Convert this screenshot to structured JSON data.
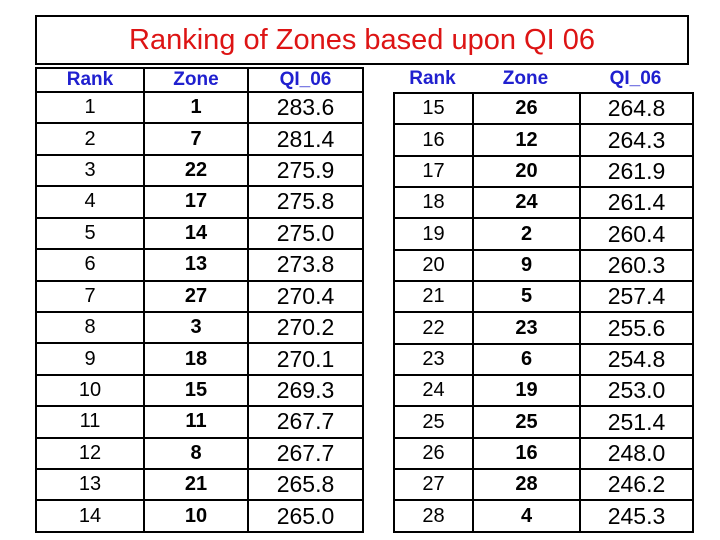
{
  "slide": {
    "title": "Ranking of Zones based upon QI 06"
  },
  "colors": {
    "title_red": "#dd1414",
    "header_blue": "#2020cf",
    "border_black": "#000000",
    "background": "#ffffff",
    "body_text": "#000000"
  },
  "columns": [
    "Rank",
    "Zone",
    "QI_06"
  ],
  "tables": {
    "left": {
      "rows": [
        [
          "1",
          "1",
          "283.6"
        ],
        [
          "2",
          "7",
          "281.4"
        ],
        [
          "3",
          "22",
          "275.9"
        ],
        [
          "4",
          "17",
          "275.8"
        ],
        [
          "5",
          "14",
          "275.0"
        ],
        [
          "6",
          "13",
          "273.8"
        ],
        [
          "7",
          "27",
          "270.4"
        ],
        [
          "8",
          "3",
          "270.2"
        ],
        [
          "9",
          "18",
          "270.1"
        ],
        [
          "10",
          "15",
          "269.3"
        ],
        [
          "11",
          "11",
          "267.7"
        ],
        [
          "12",
          "8",
          "267.7"
        ],
        [
          "13",
          "21",
          "265.8"
        ],
        [
          "14",
          "10",
          "265.0"
        ]
      ]
    },
    "right": {
      "rows": [
        [
          "15",
          "26",
          "264.8"
        ],
        [
          "16",
          "12",
          "264.3"
        ],
        [
          "17",
          "20",
          "261.9"
        ],
        [
          "18",
          "24",
          "261.4"
        ],
        [
          "19",
          "2",
          "260.4"
        ],
        [
          "20",
          "9",
          "260.3"
        ],
        [
          "21",
          "5",
          "257.4"
        ],
        [
          "22",
          "23",
          "255.6"
        ],
        [
          "23",
          "6",
          "254.8"
        ],
        [
          "24",
          "19",
          "253.0"
        ],
        [
          "25",
          "25",
          "251.4"
        ],
        [
          "26",
          "16",
          "248.0"
        ],
        [
          "27",
          "28",
          "246.2"
        ],
        [
          "28",
          "4",
          "245.3"
        ]
      ]
    }
  }
}
